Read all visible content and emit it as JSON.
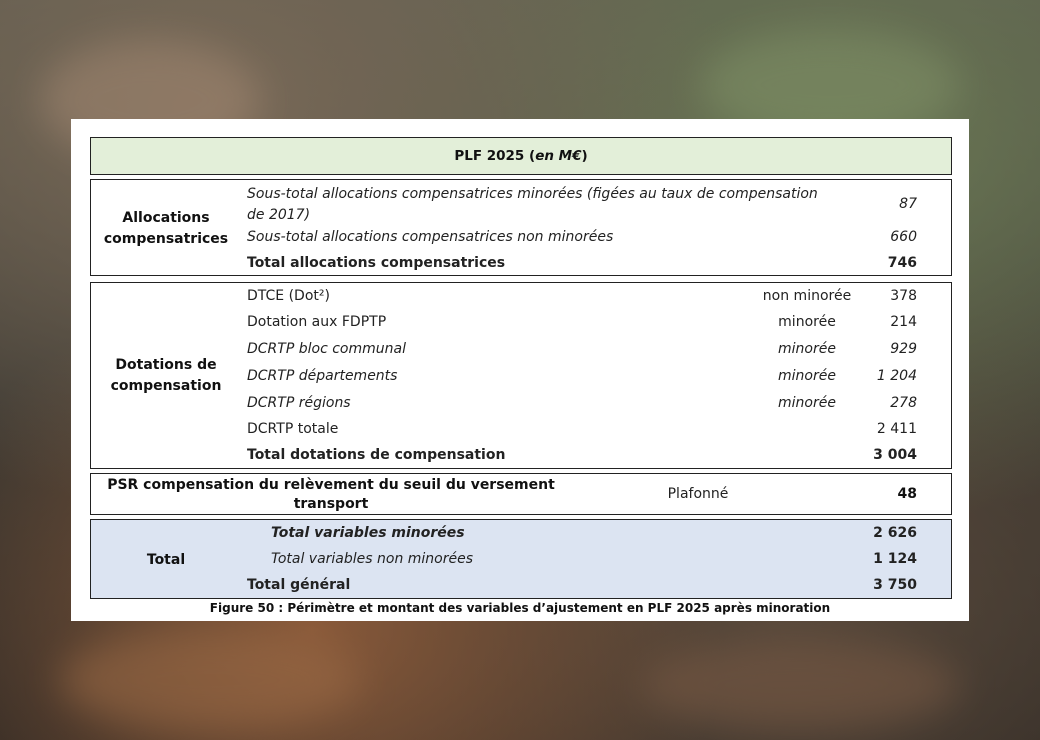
{
  "header": {
    "title": "PLF 2025 (",
    "title_italic": "en M€",
    "title_close": ")"
  },
  "blocks": {
    "allocations": {
      "category": "Allocations compensatrices",
      "rows": [
        {
          "label": "Sous-total allocations compensatrices minorées (figées au taux de compensation",
          "label2": "de 2017)",
          "status": "",
          "value": "87"
        },
        {
          "label": "Sous-total allocations compensatrices non minorées",
          "status": "",
          "value": "660"
        },
        {
          "label": "Total allocations compensatrices",
          "status": "",
          "value": "746"
        }
      ]
    },
    "dotations": {
      "category": "Dotations de compensation",
      "rows": [
        {
          "label": "DTCE (Dot²)",
          "status": "non minorée",
          "value": "378"
        },
        {
          "label": "Dotation aux FDPTP",
          "status": "minorée",
          "value": "214"
        },
        {
          "label": "DCRTP bloc communal",
          "status": "minorée",
          "value": "929"
        },
        {
          "label": "DCRTP départements",
          "status": "minorée",
          "value": "1 204"
        },
        {
          "label": "DCRTP régions",
          "status": "minorée",
          "value": "278"
        },
        {
          "label": "DCRTP totale",
          "status": "",
          "value": "2 411"
        },
        {
          "label": "Total dotations de compensation",
          "status": "",
          "value": "3 004"
        }
      ]
    },
    "psr": {
      "label": "PSR compensation du relèvement du seuil du versement",
      "label2": "transport",
      "status": "Plafonné",
      "value": "48"
    },
    "total": {
      "category": "Total",
      "rows": [
        {
          "label": "Total variables minorées",
          "value": "2 626"
        },
        {
          "label": "Total variables non minorées",
          "value": "1 124"
        },
        {
          "label": "Total général",
          "value": "3 750"
        }
      ]
    }
  },
  "caption": "Figure 50 : Périmètre et montant des variables d’ajustement en PLF 2025 après minoration"
}
